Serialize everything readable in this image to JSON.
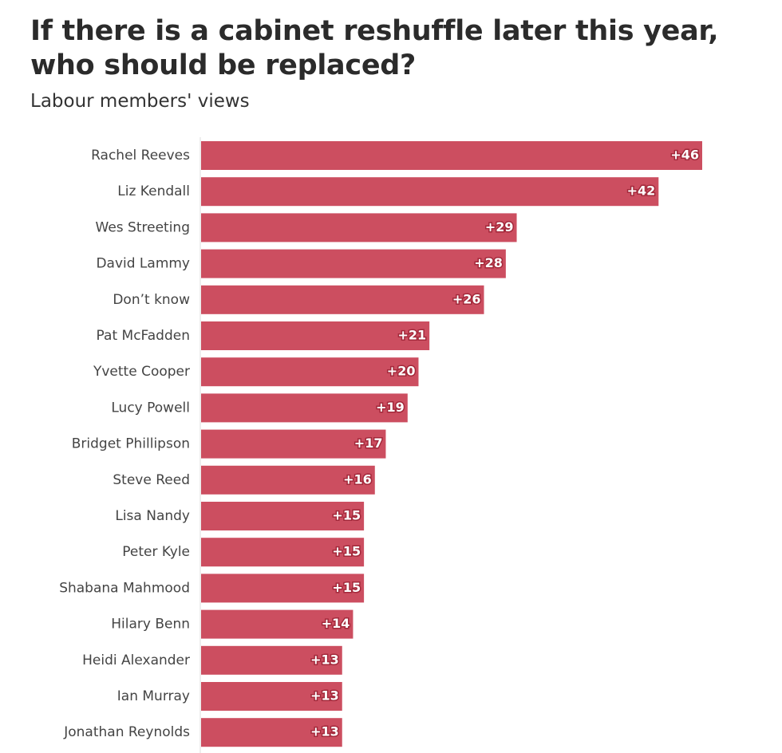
{
  "chart_data": {
    "type": "bar",
    "orientation": "horizontal",
    "title": "If there is a cabinet reshuffle later this year, who should be replaced?",
    "subtitle": "Labour members' views",
    "categories": [
      "Rachel Reeves",
      "Liz Kendall",
      "Wes Streeting",
      "David Lammy",
      "Don’t know",
      "Pat McFadden",
      "Yvette Cooper",
      "Lucy Powell",
      "Bridget Phillipson",
      "Steve Reed",
      "Lisa Nandy",
      "Peter Kyle",
      "Shabana Mahmood",
      "Hilary Benn",
      "Heidi Alexander",
      "Ian Murray",
      "Jonathan Reynolds"
    ],
    "values": [
      46,
      42,
      29,
      28,
      26,
      21,
      20,
      19,
      17,
      16,
      15,
      15,
      15,
      14,
      13,
      13,
      13
    ],
    "value_labels": [
      "+46",
      "+42",
      "+29",
      "+28",
      "+26",
      "+21",
      "+20",
      "+19",
      "+17",
      "+16",
      "+15",
      "+15",
      "+15",
      "+14",
      "+13",
      "+13",
      "+13"
    ],
    "color": "#cc4e60"
  }
}
